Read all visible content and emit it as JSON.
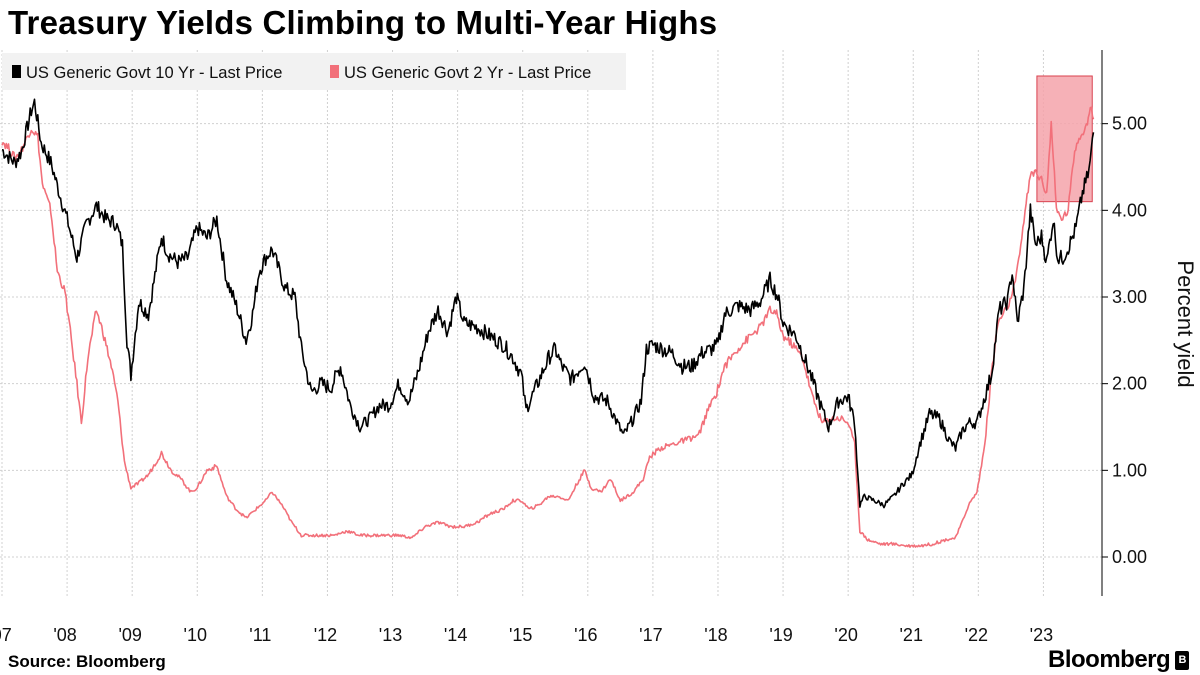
{
  "header": {
    "title": "Treasury Yields Climbing to Multi-Year Highs"
  },
  "footer": {
    "source": "Source: Bloomberg",
    "brand": "Bloomberg",
    "brand_badge": "B"
  },
  "chart_data": {
    "type": "line",
    "title": "Treasury Yields Climbing to Multi-Year Highs",
    "xlabel": "",
    "ylabel": "Percent yield",
    "x_range": [
      2007.0,
      2023.9
    ],
    "ylim": [
      -0.45,
      5.85
    ],
    "yticks": [
      0,
      1,
      2,
      3,
      4,
      5
    ],
    "ytick_labels": [
      "0.00",
      "1.00",
      "2.00",
      "3.00",
      "4.00",
      "5.00"
    ],
    "xticks": [
      {
        "year": 2007,
        "label": "'07"
      },
      {
        "year": 2008,
        "label": "'08"
      },
      {
        "year": 2009,
        "label": "'09"
      },
      {
        "year": 2010,
        "label": "'10"
      },
      {
        "year": 2011,
        "label": "'11"
      },
      {
        "year": 2012,
        "label": "'12"
      },
      {
        "year": 2013,
        "label": "'13"
      },
      {
        "year": 2014,
        "label": "'14"
      },
      {
        "year": 2015,
        "label": "'15"
      },
      {
        "year": 2016,
        "label": "'16"
      },
      {
        "year": 2017,
        "label": "'17"
      },
      {
        "year": 2018,
        "label": "'18"
      },
      {
        "year": 2019,
        "label": "'19"
      },
      {
        "year": 2020,
        "label": "'20"
      },
      {
        "year": 2021,
        "label": "'21"
      },
      {
        "year": 2022,
        "label": "'22"
      },
      {
        "year": 2023,
        "label": "'23"
      }
    ],
    "legend_position": "top-left",
    "highlight": {
      "x": [
        2022.9,
        2023.75
      ],
      "y": [
        4.1,
        5.55
      ],
      "color": "#f4a3aa"
    },
    "series": [
      {
        "name": "US Generic Govt 10 Yr - Last Price",
        "color": "#000000",
        "points": [
          [
            2007.0,
            4.7
          ],
          [
            2007.1,
            4.62
          ],
          [
            2007.2,
            4.55
          ],
          [
            2007.3,
            4.68
          ],
          [
            2007.45,
            5.15
          ],
          [
            2007.5,
            5.25
          ],
          [
            2007.6,
            4.78
          ],
          [
            2007.75,
            4.55
          ],
          [
            2007.9,
            4.15
          ],
          [
            2008.0,
            3.9
          ],
          [
            2008.15,
            3.45
          ],
          [
            2008.3,
            3.85
          ],
          [
            2008.45,
            4.05
          ],
          [
            2008.6,
            3.9
          ],
          [
            2008.75,
            3.85
          ],
          [
            2008.85,
            3.6
          ],
          [
            2008.92,
            2.5
          ],
          [
            2008.98,
            2.1
          ],
          [
            2009.1,
            2.95
          ],
          [
            2009.25,
            2.8
          ],
          [
            2009.45,
            3.7
          ],
          [
            2009.55,
            3.5
          ],
          [
            2009.7,
            3.4
          ],
          [
            2009.85,
            3.45
          ],
          [
            2010.0,
            3.8
          ],
          [
            2010.15,
            3.68
          ],
          [
            2010.3,
            3.9
          ],
          [
            2010.45,
            3.2
          ],
          [
            2010.6,
            2.9
          ],
          [
            2010.75,
            2.5
          ],
          [
            2010.85,
            2.8
          ],
          [
            2010.95,
            3.3
          ],
          [
            2011.05,
            3.45
          ],
          [
            2011.15,
            3.55
          ],
          [
            2011.35,
            3.1
          ],
          [
            2011.5,
            3.0
          ],
          [
            2011.6,
            2.4
          ],
          [
            2011.75,
            1.9
          ],
          [
            2011.9,
            2.0
          ],
          [
            2012.05,
            1.95
          ],
          [
            2012.2,
            2.2
          ],
          [
            2012.35,
            1.75
          ],
          [
            2012.5,
            1.5
          ],
          [
            2012.65,
            1.6
          ],
          [
            2012.8,
            1.75
          ],
          [
            2012.95,
            1.75
          ],
          [
            2013.1,
            2.0
          ],
          [
            2013.25,
            1.8
          ],
          [
            2013.4,
            2.15
          ],
          [
            2013.55,
            2.6
          ],
          [
            2013.7,
            2.85
          ],
          [
            2013.85,
            2.6
          ],
          [
            2013.98,
            3.0
          ],
          [
            2014.1,
            2.7
          ],
          [
            2014.3,
            2.65
          ],
          [
            2014.5,
            2.55
          ],
          [
            2014.7,
            2.45
          ],
          [
            2014.85,
            2.3
          ],
          [
            2014.98,
            2.1
          ],
          [
            2015.05,
            1.7
          ],
          [
            2015.2,
            1.95
          ],
          [
            2015.4,
            2.3
          ],
          [
            2015.5,
            2.4
          ],
          [
            2015.6,
            2.2
          ],
          [
            2015.75,
            2.05
          ],
          [
            2015.95,
            2.25
          ],
          [
            2016.1,
            1.85
          ],
          [
            2016.3,
            1.8
          ],
          [
            2016.45,
            1.55
          ],
          [
            2016.55,
            1.4
          ],
          [
            2016.7,
            1.6
          ],
          [
            2016.82,
            1.8
          ],
          [
            2016.9,
            2.4
          ],
          [
            2017.0,
            2.45
          ],
          [
            2017.15,
            2.4
          ],
          [
            2017.3,
            2.35
          ],
          [
            2017.45,
            2.2
          ],
          [
            2017.6,
            2.2
          ],
          [
            2017.75,
            2.35
          ],
          [
            2017.9,
            2.4
          ],
          [
            2018.0,
            2.45
          ],
          [
            2018.1,
            2.8
          ],
          [
            2018.3,
            2.9
          ],
          [
            2018.5,
            2.85
          ],
          [
            2018.65,
            2.95
          ],
          [
            2018.8,
            3.2
          ],
          [
            2018.92,
            3.0
          ],
          [
            2019.0,
            2.7
          ],
          [
            2019.2,
            2.55
          ],
          [
            2019.4,
            2.15
          ],
          [
            2019.6,
            1.7
          ],
          [
            2019.7,
            1.5
          ],
          [
            2019.85,
            1.8
          ],
          [
            2020.0,
            1.85
          ],
          [
            2020.1,
            1.55
          ],
          [
            2020.18,
            0.6
          ],
          [
            2020.25,
            0.7
          ],
          [
            2020.4,
            0.65
          ],
          [
            2020.55,
            0.6
          ],
          [
            2020.7,
            0.7
          ],
          [
            2020.85,
            0.85
          ],
          [
            2020.98,
            0.95
          ],
          [
            2021.1,
            1.3
          ],
          [
            2021.25,
            1.65
          ],
          [
            2021.4,
            1.6
          ],
          [
            2021.55,
            1.35
          ],
          [
            2021.65,
            1.25
          ],
          [
            2021.75,
            1.45
          ],
          [
            2021.85,
            1.55
          ],
          [
            2021.98,
            1.55
          ],
          [
            2022.1,
            1.85
          ],
          [
            2022.2,
            2.1
          ],
          [
            2022.32,
            2.85
          ],
          [
            2022.45,
            2.95
          ],
          [
            2022.52,
            3.3
          ],
          [
            2022.6,
            2.7
          ],
          [
            2022.7,
            3.1
          ],
          [
            2022.8,
            4.0
          ],
          [
            2022.88,
            3.6
          ],
          [
            2022.97,
            3.7
          ],
          [
            2023.05,
            3.4
          ],
          [
            2023.15,
            3.9
          ],
          [
            2023.22,
            3.45
          ],
          [
            2023.3,
            3.45
          ],
          [
            2023.4,
            3.6
          ],
          [
            2023.5,
            3.8
          ],
          [
            2023.6,
            4.2
          ],
          [
            2023.7,
            4.45
          ],
          [
            2023.77,
            4.9
          ]
        ]
      },
      {
        "name": "US Generic Govt 2 Yr - Last Price",
        "color": "#f2707a",
        "points": [
          [
            2007.0,
            4.8
          ],
          [
            2007.1,
            4.72
          ],
          [
            2007.2,
            4.6
          ],
          [
            2007.3,
            4.7
          ],
          [
            2007.45,
            4.95
          ],
          [
            2007.55,
            4.85
          ],
          [
            2007.62,
            4.3
          ],
          [
            2007.75,
            4.0
          ],
          [
            2007.85,
            3.3
          ],
          [
            2007.97,
            3.05
          ],
          [
            2008.05,
            2.6
          ],
          [
            2008.15,
            2.0
          ],
          [
            2008.22,
            1.55
          ],
          [
            2008.32,
            2.3
          ],
          [
            2008.45,
            2.85
          ],
          [
            2008.55,
            2.6
          ],
          [
            2008.68,
            2.2
          ],
          [
            2008.78,
            1.8
          ],
          [
            2008.88,
            1.1
          ],
          [
            2008.98,
            0.8
          ],
          [
            2009.1,
            0.85
          ],
          [
            2009.25,
            0.95
          ],
          [
            2009.45,
            1.2
          ],
          [
            2009.6,
            1.0
          ],
          [
            2009.75,
            0.9
          ],
          [
            2009.9,
            0.75
          ],
          [
            2010.0,
            0.8
          ],
          [
            2010.15,
            1.0
          ],
          [
            2010.3,
            1.05
          ],
          [
            2010.45,
            0.7
          ],
          [
            2010.6,
            0.55
          ],
          [
            2010.75,
            0.45
          ],
          [
            2010.9,
            0.55
          ],
          [
            2011.05,
            0.65
          ],
          [
            2011.15,
            0.75
          ],
          [
            2011.3,
            0.6
          ],
          [
            2011.45,
            0.4
          ],
          [
            2011.6,
            0.25
          ],
          [
            2011.75,
            0.25
          ],
          [
            2011.9,
            0.25
          ],
          [
            2012.1,
            0.25
          ],
          [
            2012.3,
            0.3
          ],
          [
            2012.5,
            0.25
          ],
          [
            2012.7,
            0.25
          ],
          [
            2012.9,
            0.25
          ],
          [
            2013.1,
            0.25
          ],
          [
            2013.3,
            0.22
          ],
          [
            2013.5,
            0.35
          ],
          [
            2013.7,
            0.4
          ],
          [
            2013.9,
            0.35
          ],
          [
            2014.1,
            0.35
          ],
          [
            2014.3,
            0.4
          ],
          [
            2014.5,
            0.5
          ],
          [
            2014.7,
            0.55
          ],
          [
            2014.85,
            0.65
          ],
          [
            2014.98,
            0.65
          ],
          [
            2015.1,
            0.55
          ],
          [
            2015.25,
            0.6
          ],
          [
            2015.4,
            0.7
          ],
          [
            2015.55,
            0.7
          ],
          [
            2015.7,
            0.65
          ],
          [
            2015.8,
            0.8
          ],
          [
            2015.95,
            1.0
          ],
          [
            2016.05,
            0.8
          ],
          [
            2016.2,
            0.75
          ],
          [
            2016.35,
            0.9
          ],
          [
            2016.5,
            0.65
          ],
          [
            2016.7,
            0.75
          ],
          [
            2016.85,
            0.9
          ],
          [
            2016.95,
            1.15
          ],
          [
            2017.1,
            1.25
          ],
          [
            2017.3,
            1.3
          ],
          [
            2017.5,
            1.35
          ],
          [
            2017.7,
            1.4
          ],
          [
            2017.85,
            1.7
          ],
          [
            2017.98,
            1.9
          ],
          [
            2018.1,
            2.2
          ],
          [
            2018.3,
            2.4
          ],
          [
            2018.5,
            2.55
          ],
          [
            2018.65,
            2.65
          ],
          [
            2018.8,
            2.85
          ],
          [
            2018.9,
            2.8
          ],
          [
            2019.0,
            2.55
          ],
          [
            2019.15,
            2.45
          ],
          [
            2019.3,
            2.3
          ],
          [
            2019.45,
            1.85
          ],
          [
            2019.6,
            1.55
          ],
          [
            2019.75,
            1.6
          ],
          [
            2019.9,
            1.6
          ],
          [
            2020.0,
            1.55
          ],
          [
            2020.1,
            1.3
          ],
          [
            2020.18,
            0.3
          ],
          [
            2020.3,
            0.2
          ],
          [
            2020.5,
            0.15
          ],
          [
            2020.7,
            0.15
          ],
          [
            2020.9,
            0.13
          ],
          [
            2021.1,
            0.13
          ],
          [
            2021.3,
            0.15
          ],
          [
            2021.5,
            0.2
          ],
          [
            2021.65,
            0.22
          ],
          [
            2021.75,
            0.4
          ],
          [
            2021.85,
            0.6
          ],
          [
            2021.98,
            0.75
          ],
          [
            2022.1,
            1.3
          ],
          [
            2022.2,
            2.1
          ],
          [
            2022.3,
            2.7
          ],
          [
            2022.42,
            2.85
          ],
          [
            2022.52,
            3.0
          ],
          [
            2022.62,
            3.4
          ],
          [
            2022.7,
            3.9
          ],
          [
            2022.8,
            4.4
          ],
          [
            2022.88,
            4.45
          ],
          [
            2022.97,
            4.35
          ],
          [
            2023.05,
            4.2
          ],
          [
            2023.12,
            5.0
          ],
          [
            2023.2,
            4.0
          ],
          [
            2023.28,
            3.9
          ],
          [
            2023.38,
            4.0
          ],
          [
            2023.48,
            4.7
          ],
          [
            2023.58,
            4.9
          ],
          [
            2023.66,
            4.95
          ],
          [
            2023.72,
            5.2
          ],
          [
            2023.77,
            5.05
          ]
        ]
      }
    ]
  }
}
